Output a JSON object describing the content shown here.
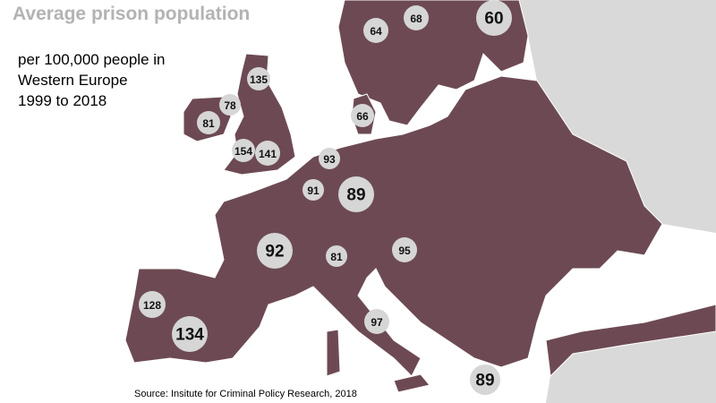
{
  "title": "Average prison population",
  "subtitle_lines": [
    "per 100,000 people in",
    "Western Europe",
    "1999 to 2018"
  ],
  "source": "Source: Insitute for Criminal Policy Research, 2018",
  "bubbles": [
    {
      "value": 64
    },
    {
      "value": 68
    },
    {
      "value": 60
    },
    {
      "value": 135
    },
    {
      "value": 78
    },
    {
      "value": 81
    },
    {
      "value": 66
    },
    {
      "value": 154
    },
    {
      "value": 141
    },
    {
      "value": 93
    },
    {
      "value": 91
    },
    {
      "value": 89
    },
    {
      "value": 92
    },
    {
      "value": 81
    },
    {
      "value": 95
    },
    {
      "value": 128
    },
    {
      "value": 134
    },
    {
      "value": 97
    },
    {
      "value": 89
    }
  ]
}
